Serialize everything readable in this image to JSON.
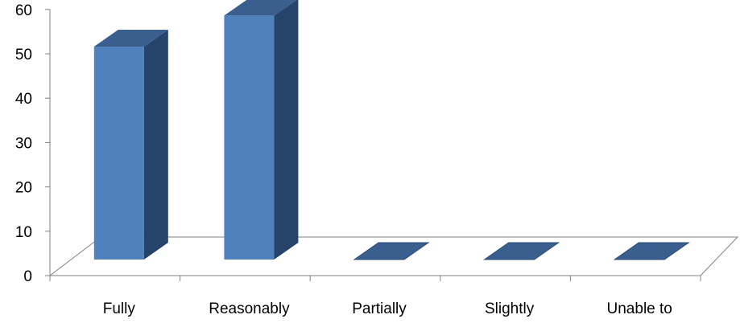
{
  "chart_data": {
    "type": "bar",
    "categories": [
      "Fully",
      "Reasonably",
      "Partially",
      "Slightly",
      "Unable to"
    ],
    "values": [
      48,
      55,
      0,
      0,
      0
    ],
    "ylim": [
      0,
      60
    ],
    "yticks": [
      0,
      10,
      20,
      30,
      40,
      50,
      60
    ],
    "title": "",
    "xlabel": "",
    "ylabel": "",
    "grid": false,
    "legend": "none",
    "style": "3d-column",
    "colors": {
      "front": "#4f81bd",
      "side": "#26446b",
      "top": "#3a5f8f",
      "axis": "#808080"
    }
  }
}
